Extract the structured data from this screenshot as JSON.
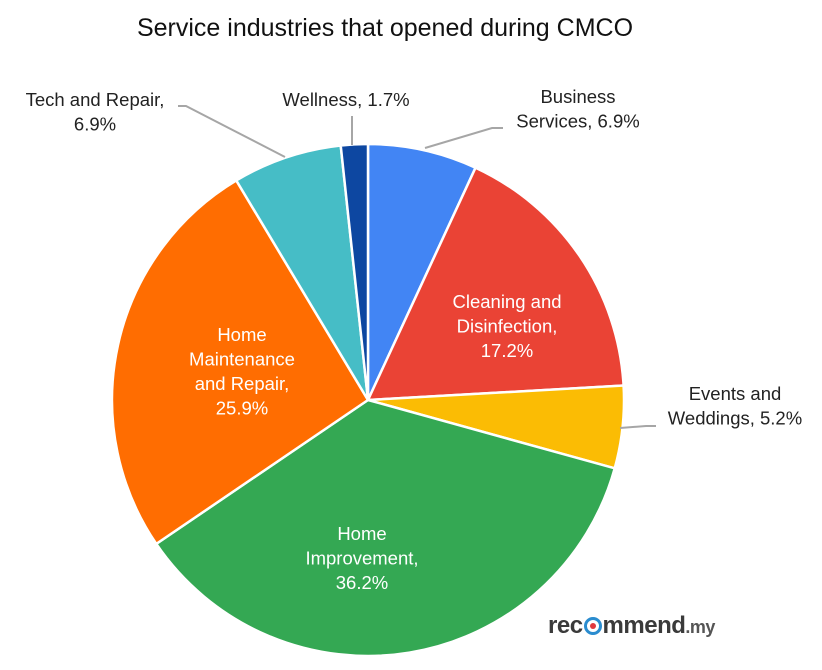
{
  "chart_data": {
    "type": "pie",
    "title": "Service industries that opened during CMCO",
    "slices": [
      {
        "name": "Business Services",
        "value": 6.9,
        "color": "#4285f4",
        "label_lines": [
          "Business",
          "Services, 6.9%"
        ],
        "label_position": "outside"
      },
      {
        "name": "Cleaning and Disinfection",
        "value": 17.2,
        "color": "#ea4335",
        "label_lines": [
          "Cleaning and",
          "Disinfection,",
          "17.2%"
        ],
        "label_position": "inside"
      },
      {
        "name": "Events and Weddings",
        "value": 5.2,
        "color": "#fbbc04",
        "label_lines": [
          "Events and",
          "Weddings, 5.2%"
        ],
        "label_position": "outside"
      },
      {
        "name": "Home Improvement",
        "value": 36.2,
        "color": "#34a853",
        "label_lines": [
          "Home",
          "Improvement,",
          "36.2%"
        ],
        "label_position": "inside"
      },
      {
        "name": "Home Maintenance and Repair",
        "value": 25.9,
        "color": "#ff6d01",
        "label_lines": [
          "Home",
          "Maintenance",
          "and Repair,",
          "25.9%"
        ],
        "label_position": "inside"
      },
      {
        "name": "Tech and Repair",
        "value": 6.9,
        "color": "#46bdc6",
        "label_lines": [
          "Tech and Repair,",
          "6.9%"
        ],
        "label_position": "outside"
      },
      {
        "name": "Wellness",
        "value": 1.7,
        "color": "#0d47a1",
        "label_lines": [
          "Wellness, 1.7%"
        ],
        "label_position": "outside"
      }
    ],
    "start_angle": "12 o'clock",
    "direction": "clockwise",
    "legend": "none"
  },
  "watermark": {
    "brand": "rec",
    "brand_o": "o",
    "brand_rest": "mmend",
    "suffix": ".my"
  }
}
